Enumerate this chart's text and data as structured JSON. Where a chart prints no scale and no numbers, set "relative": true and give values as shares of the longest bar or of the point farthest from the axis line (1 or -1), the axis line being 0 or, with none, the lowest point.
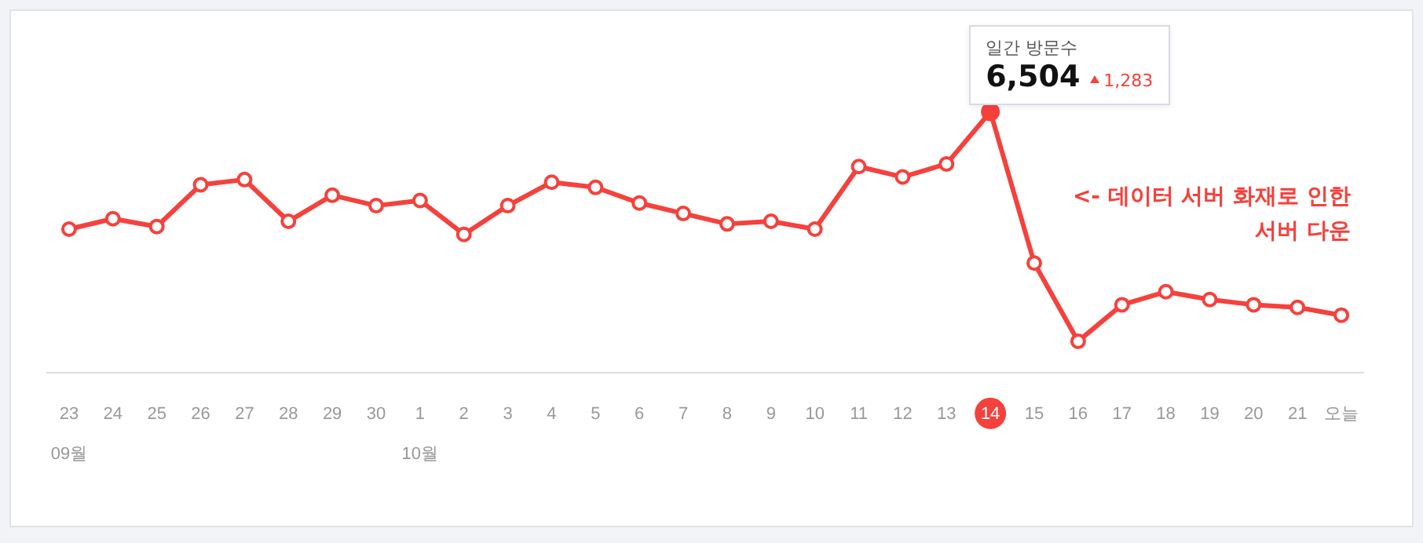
{
  "chart_data": {
    "type": "line",
    "relative": true,
    "legend": false,
    "marker": "circle",
    "line_style": "solid",
    "categories": [
      "23\n09월",
      "24",
      "25",
      "26",
      "27",
      "28",
      "29",
      "30",
      "1\n10월",
      "2",
      "3",
      "4",
      "5",
      "6",
      "7",
      "8",
      "9",
      "10",
      "11",
      "12",
      "13",
      "14",
      "15",
      "16",
      "17",
      "18",
      "19",
      "20",
      "21",
      "오늘"
    ],
    "series": [
      {
        "color": "#f5413c",
        "values": [
          0.55,
          0.59,
          0.56,
          0.72,
          0.74,
          0.58,
          0.68,
          0.64,
          0.66,
          0.53,
          0.64,
          0.73,
          0.71,
          0.65,
          0.61,
          0.57,
          0.58,
          0.55,
          0.79,
          0.75,
          0.8,
          1,
          0.42,
          0.12,
          0.26,
          0.31,
          0.28,
          0.26,
          0.25,
          0.22
        ]
      }
    ],
    "annotations": [
      "일간 방문수",
      "6,504",
      "1,283",
      "<- 데이터 서버 화재로 인한 서버 다운"
    ]
  }
}
